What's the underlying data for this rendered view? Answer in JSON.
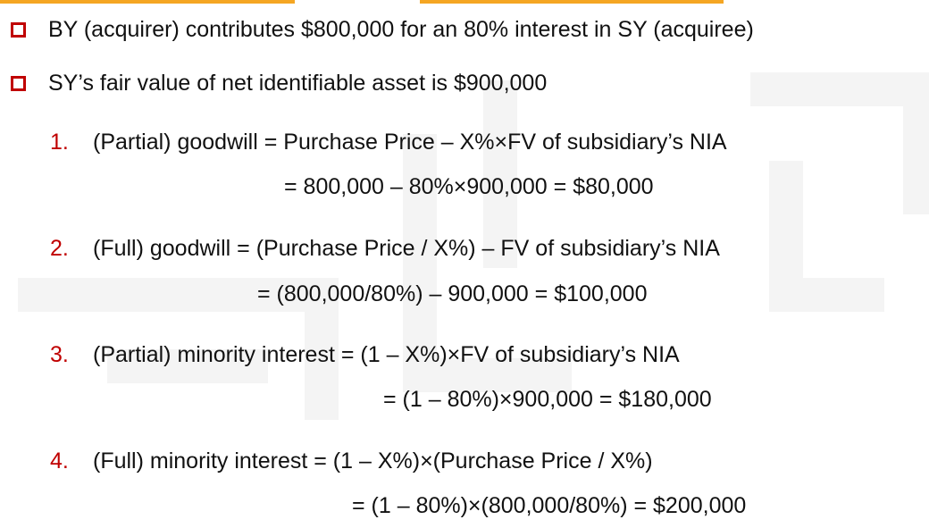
{
  "bullets": [
    "BY (acquirer) contributes $800,000 for an 80% interest in SY (acquiree)",
    "SY’s fair value of net identifiable asset is $900,000"
  ],
  "items": [
    {
      "number": "1.",
      "line1": "(Partial) goodwill = Purchase Price  –  X%×FV of subsidiary’s NIA",
      "line2": "= 800,000 – 80%×900,000 = $80,000"
    },
    {
      "number": "2.",
      "line1": "(Full) goodwill = (Purchase Price / X%)  –  FV of subsidiary’s NIA",
      "line2": "= (800,000/80%) – 900,000 = $100,000"
    },
    {
      "number": "3.",
      "line1": "(Partial) minority interest = (1 – X%)×FV of subsidiary’s NIA",
      "line2": "= (1 – 80%)×900,000 = $180,000"
    },
    {
      "number": "4.",
      "line1": "(Full) minority interest = (1 – X%)×(Purchase Price / X%)",
      "line2": "= (1 – 80%)×(800,000/80%) = $200,000"
    }
  ],
  "colors": {
    "accent": "#c00000",
    "top_bar": "#f5a623"
  }
}
